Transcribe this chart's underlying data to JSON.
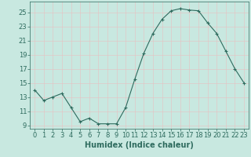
{
  "x": [
    0,
    1,
    2,
    3,
    4,
    5,
    6,
    7,
    8,
    9,
    10,
    11,
    12,
    13,
    14,
    15,
    16,
    17,
    18,
    19,
    20,
    21,
    22,
    23
  ],
  "y": [
    14.0,
    12.5,
    13.0,
    13.5,
    11.5,
    9.5,
    10.0,
    9.2,
    9.2,
    9.2,
    11.5,
    15.5,
    19.2,
    22.0,
    24.0,
    25.2,
    25.5,
    25.3,
    25.2,
    23.5,
    22.0,
    19.5,
    17.0,
    15.0
  ],
  "xlabel": "Humidex (Indice chaleur)",
  "xlim": [
    -0.5,
    23.5
  ],
  "ylim": [
    8.5,
    26.5
  ],
  "yticks": [
    9,
    11,
    13,
    15,
    17,
    19,
    21,
    23,
    25
  ],
  "xticks": [
    0,
    1,
    2,
    3,
    4,
    5,
    6,
    7,
    8,
    9,
    10,
    11,
    12,
    13,
    14,
    15,
    16,
    17,
    18,
    19,
    20,
    21,
    22,
    23
  ],
  "line_color": "#2e6b5e",
  "marker": "+",
  "bg_color": "#c8e8e0",
  "grid_color": "#b0d8d0",
  "grid_minor_color": "#d8f0e8",
  "xlabel_fontsize": 7,
  "tick_fontsize": 6
}
